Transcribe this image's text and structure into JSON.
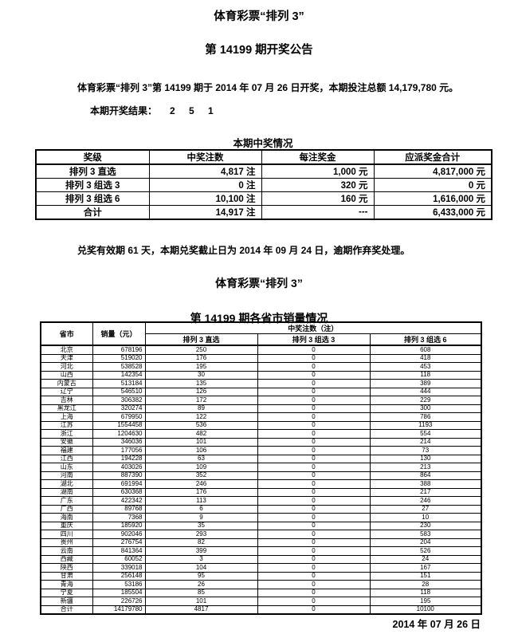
{
  "header": {
    "title_line1": "体育彩票“排列 3”",
    "title_line2": "第 14199 期开奖公告",
    "intro": "体育彩票“排列 3”第 14199 期于 2014 年 07 月 26 日开奖，本期投注总额 14,179,780 元。",
    "result_label": "本期开奖结果：",
    "result_numbers": "2 5 1"
  },
  "prize_table": {
    "title": "本期中奖情况",
    "headers": [
      "奖级",
      "中奖注数",
      "每注奖金",
      "应派奖金合计"
    ],
    "rows": [
      [
        "排列 3 直选",
        "4,817 注",
        "1,000 元",
        "4,817,000 元"
      ],
      [
        "排列 3 组选 3",
        "0 注",
        "320 元",
        "0 元"
      ],
      [
        "排列 3 组选 6",
        "10,100 注",
        "160 元",
        "1,616,000 元"
      ],
      [
        "合计",
        "14,917 注",
        "---",
        "6,433,000 元"
      ]
    ]
  },
  "claim_note": "兑奖有效期 61 天，本期兑奖截止日为 2014 年 09 月 24 日，逾期作弃奖处理。",
  "sales_section": {
    "title_line1": "体育彩票“排列 3”",
    "title_line2": "第 14199 期各省市销量情况"
  },
  "sales_table": {
    "col_province": "省市",
    "col_sales": "销量（元）",
    "col_wins": "中奖注数（注）",
    "sub_headers": [
      "排列 3 直选",
      "排列 3 组选 3",
      "排列 3 组选 6"
    ],
    "rows": [
      [
        "北京",
        "678196",
        "250",
        "0",
        "608"
      ],
      [
        "天津",
        "519020",
        "176",
        "0",
        "418"
      ],
      [
        "河北",
        "538528",
        "195",
        "0",
        "453"
      ],
      [
        "山西",
        "142354",
        "30",
        "0",
        "118"
      ],
      [
        "内蒙古",
        "513184",
        "135",
        "0",
        "389"
      ],
      [
        "辽宁",
        "546510",
        "126",
        "0",
        "444"
      ],
      [
        "吉林",
        "306382",
        "172",
        "0",
        "229"
      ],
      [
        "黑龙江",
        "320274",
        "89",
        "0",
        "300"
      ],
      [
        "上海",
        "679950",
        "122",
        "0",
        "786"
      ],
      [
        "江苏",
        "1554458",
        "536",
        "0",
        "1193"
      ],
      [
        "浙江",
        "1204630",
        "482",
        "0",
        "554"
      ],
      [
        "安徽",
        "346036",
        "101",
        "0",
        "214"
      ],
      [
        "福建",
        "177056",
        "106",
        "0",
        "73"
      ],
      [
        "江西",
        "194228",
        "63",
        "0",
        "130"
      ],
      [
        "山东",
        "403026",
        "109",
        "0",
        "213"
      ],
      [
        "河南",
        "887390",
        "352",
        "0",
        "864"
      ],
      [
        "湖北",
        "691994",
        "246",
        "0",
        "388"
      ],
      [
        "湖南",
        "630368",
        "176",
        "0",
        "217"
      ],
      [
        "广东",
        "422342",
        "113",
        "0",
        "246"
      ],
      [
        "广西",
        "89768",
        "6",
        "0",
        "27"
      ],
      [
        "海南",
        "7368",
        "9",
        "0",
        "10"
      ],
      [
        "重庆",
        "185920",
        "35",
        "0",
        "230"
      ],
      [
        "四川",
        "902046",
        "293",
        "0",
        "583"
      ],
      [
        "贵州",
        "276754",
        "82",
        "0",
        "204"
      ],
      [
        "云南",
        "841364",
        "399",
        "0",
        "526"
      ],
      [
        "西藏",
        "60052",
        "3",
        "0",
        "24"
      ],
      [
        "陕西",
        "339018",
        "104",
        "0",
        "167"
      ],
      [
        "甘肃",
        "256148",
        "95",
        "0",
        "151"
      ],
      [
        "青海",
        "53186",
        "26",
        "0",
        "28"
      ],
      [
        "宁夏",
        "185504",
        "85",
        "0",
        "118"
      ],
      [
        "新疆",
        "226726",
        "101",
        "0",
        "195"
      ],
      [
        "合计",
        "14179780",
        "4817",
        "0",
        "10100"
      ]
    ]
  },
  "footer": {
    "date": "2014 年 07 月 26 日"
  }
}
